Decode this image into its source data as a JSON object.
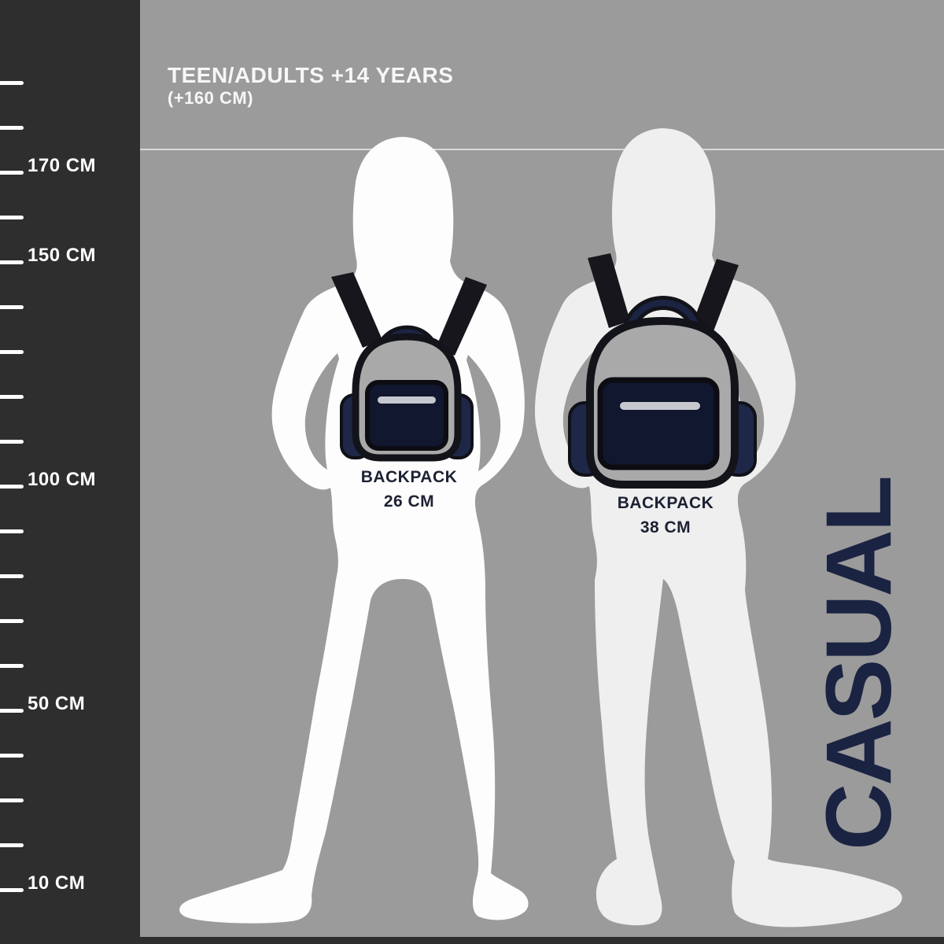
{
  "header": {
    "title": "TEEN/ADULTS +14 YEARS",
    "subtitle": "(+160 CM)"
  },
  "ruler": {
    "unit": "CM",
    "max_value": 190,
    "min_value": 10,
    "step": 10,
    "labeled_values": [
      170,
      150,
      100,
      50,
      10
    ]
  },
  "figures": {
    "left": {
      "description": "adult silhouette wearing small backpack",
      "backpack_label": "BACKPACK",
      "backpack_size": "26 CM"
    },
    "right": {
      "description": "adult silhouette wearing large backpack",
      "backpack_label": "BACKPACK",
      "backpack_size": "38 CM"
    }
  },
  "side_label": "CASUAL",
  "colors": {
    "background": "#9b9b9b",
    "ruler_bar": "#2e2e2e",
    "accent_navy": "#1b2342",
    "silhouette_left": "#fdfdfd",
    "silhouette_right": "#efefef",
    "backpack_body": "#a9a9a9",
    "backpack_pocket": "#10172e",
    "backpack_pouch": "#1e2747",
    "strap_black": "#16161c",
    "zipper_light": "#c6c8ce",
    "guide_line": "#d8d8d8"
  }
}
